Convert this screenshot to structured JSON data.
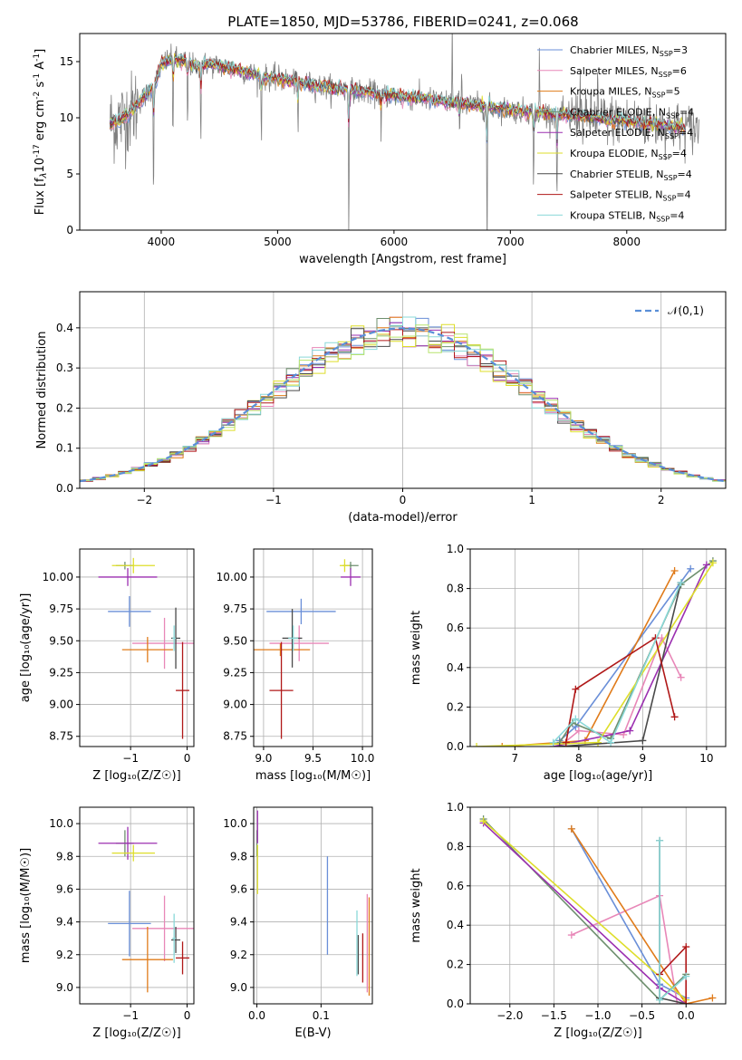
{
  "figure": {
    "title": "PLATE=1850, MJD=53786, FIBERID=0241, z=0.068"
  },
  "colors": {
    "Chabrier MILES": "#6a8fd8",
    "Salpeter MILES": "#e887b8",
    "Kroupa MILES": "#e07b1a",
    "Chabrier ELODIE": "#6e8f6e",
    "Salpeter ELODIE": "#9b2fb0",
    "Kroupa ELODIE": "#dede2a",
    "Chabrier STELIB": "#4a4a4a",
    "Salpeter STELIB": "#b01818",
    "Kroupa STELIB": "#8ad8d8",
    "data": "#808080",
    "gaussian": "#5a8fd8",
    "histogram_extra": "#b7e36e"
  },
  "chart_data": [
    {
      "id": "spectrum",
      "type": "line",
      "title": "PLATE=1850, MJD=53786, FIBERID=0241, z=0.068",
      "xlabel": "wavelength [Angstrom, rest frame]",
      "ylabel_parts": [
        "Flux [f",
        "λ",
        "10",
        "-17",
        " erg cm",
        "-2",
        " s",
        "-1",
        " A",
        "-1",
        "]"
      ],
      "xlim": [
        3300,
        8850
      ],
      "ylim": [
        0,
        17.5
      ],
      "xticks": [
        4000,
        5000,
        6000,
        7000,
        8000
      ],
      "yticks": [
        0,
        5,
        10,
        15
      ],
      "grid": false,
      "legend": "top-right",
      "legend_entries": [
        {
          "model": "Chabrier MILES",
          "label": "Chabrier MILES, N",
          "sub": "SSP",
          "suffix": "=3"
        },
        {
          "model": "Salpeter MILES",
          "label": "Salpeter MILES, N",
          "sub": "SSP",
          "suffix": "=6"
        },
        {
          "model": "Kroupa MILES",
          "label": "Kroupa MILES, N",
          "sub": "SSP",
          "suffix": "=5"
        },
        {
          "model": "Chabrier ELODIE",
          "label": "Chabrier ELODIE, N",
          "sub": "SSP",
          "suffix": "=4"
        },
        {
          "model": "Salpeter ELODIE",
          "label": "Salpeter ELODIE, N",
          "sub": "SSP",
          "suffix": "=4"
        },
        {
          "model": "Kroupa ELODIE",
          "label": "Kroupa ELODIE, N",
          "sub": "SSP",
          "suffix": "=4"
        },
        {
          "model": "Chabrier STELIB",
          "label": "Chabrier STELIB, N",
          "sub": "SSP",
          "suffix": "=4"
        },
        {
          "model": "Salpeter STELIB",
          "label": "Salpeter STELIB, N",
          "sub": "SSP",
          "suffix": "=4"
        },
        {
          "model": "Kroupa STELIB",
          "label": "Kroupa STELIB, N",
          "sub": "SSP",
          "suffix": "=4"
        }
      ],
      "continuum": [
        [
          3560,
          9.5
        ],
        [
          3650,
          9.8
        ],
        [
          3750,
          10.6
        ],
        [
          3850,
          11.8
        ],
        [
          3950,
          13.0
        ],
        [
          4000,
          14.8
        ],
        [
          4100,
          15.3
        ],
        [
          4200,
          15.0
        ],
        [
          4300,
          14.5
        ],
        [
          4400,
          14.8
        ],
        [
          4500,
          14.6
        ],
        [
          4700,
          14.2
        ],
        [
          4860,
          13.6
        ],
        [
          5000,
          13.5
        ],
        [
          5200,
          13.1
        ],
        [
          5500,
          12.6
        ],
        [
          5900,
          12.1
        ],
        [
          6300,
          11.6
        ],
        [
          6700,
          11.1
        ],
        [
          7100,
          10.6
        ],
        [
          7500,
          10.2
        ],
        [
          7900,
          9.8
        ],
        [
          8300,
          9.4
        ],
        [
          8600,
          9.0
        ]
      ],
      "data_range": [
        3560,
        8620
      ],
      "model_range": [
        3560,
        8500
      ],
      "dips": [
        [
          3934,
          11.8
        ],
        [
          4101,
          8
        ],
        [
          4227,
          6.5
        ],
        [
          4340,
          8
        ],
        [
          4861,
          6.5
        ],
        [
          5175,
          6
        ],
        [
          5612,
          14.5
        ],
        [
          5890,
          5
        ],
        [
          6563,
          6
        ],
        [
          6800,
          15
        ],
        [
          7200,
          8
        ],
        [
          7400,
          10
        ]
      ],
      "spikes": [
        [
          6500,
          8
        ],
        [
          6560,
          5
        ],
        [
          6583,
          4
        ],
        [
          7250,
          6
        ],
        [
          7600,
          6
        ],
        [
          7750,
          5
        ]
      ]
    },
    {
      "id": "residuals",
      "type": "line",
      "xlabel": "(data-model)/error",
      "ylabel": "Normed distribution",
      "xlim": [
        -2.5,
        2.5
      ],
      "ylim": [
        0,
        0.49
      ],
      "xticks": [
        -2,
        -1,
        0,
        1,
        2
      ],
      "yticks": [
        0.0,
        0.1,
        0.2,
        0.3,
        0.4
      ],
      "grid": true,
      "legend": "top-right",
      "legend_label": "𝒩(0,1)",
      "bin_width": 0.1
    },
    {
      "id": "age_vs_Z",
      "type": "scatter",
      "xlabel": "Z [log₁₀(Z/Z☉)]",
      "ylabel": "age  [log₁₀(age/yr)]",
      "xlim": [
        -1.9,
        0.12
      ],
      "ylim": [
        8.67,
        10.22
      ],
      "xticks": [
        -1,
        0
      ],
      "yticks": [
        8.75,
        9.0,
        9.25,
        9.5,
        9.75,
        10.0
      ],
      "grid": true,
      "points": [
        {
          "model": "Chabrier MILES",
          "x": -1.02,
          "xerr": 0.38,
          "y": 9.73,
          "yerr": 0.12
        },
        {
          "model": "Salpeter MILES",
          "x": -0.4,
          "xerr": 0.57,
          "y": 9.48,
          "yerr": 0.2
        },
        {
          "model": "Kroupa MILES",
          "x": -0.7,
          "xerr": 0.45,
          "y": 9.43,
          "yerr": 0.1
        },
        {
          "model": "Chabrier ELODIE",
          "x": -1.1,
          "xerr": 0.16,
          "y": 10.09,
          "yerr": 0.03
        },
        {
          "model": "Salpeter ELODIE",
          "x": -1.05,
          "xerr": 0.52,
          "y": 10.0,
          "yerr": 0.07
        },
        {
          "model": "Kroupa ELODIE",
          "x": -0.95,
          "xerr": 0.38,
          "y": 10.09,
          "yerr": 0.06
        },
        {
          "model": "Chabrier STELIB",
          "x": -0.2,
          "xerr": 0.08,
          "y": 9.52,
          "yerr": 0.24
        },
        {
          "model": "Salpeter STELIB",
          "x": -0.08,
          "xerr": 0.12,
          "y": 9.11,
          "yerr": 0.38
        },
        {
          "model": "Kroupa STELIB",
          "x": -0.23,
          "xerr": 0.03,
          "y": 9.52,
          "yerr": 0.1
        }
      ]
    },
    {
      "id": "age_vs_mass",
      "type": "scatter",
      "xlabel": "mass [log₁₀(M/M☉)]",
      "ylabel": "",
      "xlim": [
        8.9,
        10.1
      ],
      "ylim": [
        8.67,
        10.22
      ],
      "xticks": [
        9.0,
        9.5,
        10.0
      ],
      "yticks": [
        8.75,
        9.0,
        9.25,
        9.5,
        9.75,
        10.0
      ],
      "grid": true,
      "points": [
        {
          "model": "Chabrier MILES",
          "x": 9.38,
          "xerr": 0.35,
          "y": 9.73,
          "yerr": 0.1
        },
        {
          "model": "Salpeter MILES",
          "x": 9.36,
          "xerr": 0.3,
          "y": 9.48,
          "yerr": 0.14
        },
        {
          "model": "Kroupa MILES",
          "x": 9.17,
          "xerr": 0.3,
          "y": 9.43,
          "yerr": 0.05
        },
        {
          "model": "Chabrier ELODIE",
          "x": 9.88,
          "xerr": 0.08,
          "y": 10.09,
          "yerr": 0.03
        },
        {
          "model": "Salpeter ELODIE",
          "x": 9.88,
          "xerr": 0.1,
          "y": 10.0,
          "yerr": 0.07
        },
        {
          "model": "Kroupa ELODIE",
          "x": 9.82,
          "xerr": 0.05,
          "y": 10.09,
          "yerr": 0.05
        },
        {
          "model": "Chabrier STELIB",
          "x": 9.29,
          "xerr": 0.1,
          "y": 9.52,
          "yerr": 0.23
        },
        {
          "model": "Salpeter STELIB",
          "x": 9.18,
          "xerr": 0.12,
          "y": 9.11,
          "yerr": 0.38
        },
        {
          "model": "Kroupa STELIB",
          "x": 9.3,
          "xerr": 0.05,
          "y": 9.52,
          "yerr": 0.1
        }
      ]
    },
    {
      "id": "weight_vs_age",
      "type": "line",
      "xlabel": "age  [log₁₀(age/yr)]",
      "ylabel": "mass weight",
      "xlim": [
        6.3,
        10.3
      ],
      "ylim": [
        0,
        1.0
      ],
      "xticks": [
        7,
        8,
        9,
        10
      ],
      "yticks": [
        0.0,
        0.2,
        0.4,
        0.6,
        0.8,
        1.0
      ],
      "grid": true,
      "series": [
        {
          "model": "Chabrier MILES",
          "points": [
            [
              7.7,
              0.03
            ],
            [
              7.95,
              0.1
            ],
            [
              9.75,
              0.9
            ]
          ]
        },
        {
          "model": "Salpeter MILES",
          "points": [
            [
              7.7,
              0.0
            ],
            [
              8.0,
              0.08
            ],
            [
              8.7,
              0.06
            ],
            [
              9.3,
              0.55
            ],
            [
              9.6,
              0.35
            ]
          ]
        },
        {
          "model": "Kroupa MILES",
          "points": [
            [
              6.8,
              0.0
            ],
            [
              8.1,
              0.03
            ],
            [
              9.5,
              0.89
            ]
          ]
        },
        {
          "model": "Chabrier ELODIE",
          "points": [
            [
              7.7,
              0.02
            ],
            [
              7.9,
              0.12
            ],
            [
              8.5,
              0.04
            ],
            [
              9.6,
              0.82
            ],
            [
              10.1,
              0.94
            ]
          ]
        },
        {
          "model": "Salpeter ELODIE",
          "points": [
            [
              7.6,
              0.0
            ],
            [
              8.8,
              0.08
            ],
            [
              10.0,
              0.92
            ]
          ]
        },
        {
          "model": "Kroupa ELODIE",
          "points": [
            [
              6.4,
              0.0
            ],
            [
              8.3,
              0.02
            ],
            [
              10.1,
              0.93
            ]
          ]
        },
        {
          "model": "Chabrier STELIB",
          "points": [
            [
              7.7,
              0.0
            ],
            [
              9.0,
              0.03
            ],
            [
              9.6,
              0.83
            ]
          ]
        },
        {
          "model": "Salpeter STELIB",
          "points": [
            [
              7.8,
              0.02
            ],
            [
              7.95,
              0.29
            ],
            [
              9.2,
              0.55
            ],
            [
              9.5,
              0.15
            ]
          ]
        },
        {
          "model": "Kroupa STELIB",
          "points": [
            [
              7.6,
              0.02
            ],
            [
              7.95,
              0.14
            ],
            [
              8.5,
              0.02
            ],
            [
              9.6,
              0.83
            ]
          ]
        }
      ]
    },
    {
      "id": "mass_vs_Z",
      "type": "scatter",
      "xlabel": "Z [log₁₀(Z/Z☉)]",
      "ylabel": "mass [log₁₀(M/M☉)]",
      "xlim": [
        -1.9,
        0.12
      ],
      "ylim": [
        8.9,
        10.1
      ],
      "xticks": [
        -1,
        0
      ],
      "yticks": [
        9.0,
        9.2,
        9.4,
        9.6,
        9.8,
        10.0
      ],
      "grid": true,
      "points": [
        {
          "model": "Chabrier MILES",
          "x": -1.02,
          "xerr": 0.38,
          "y": 9.39,
          "yerr": 0.2
        },
        {
          "model": "Salpeter MILES",
          "x": -0.4,
          "xerr": 0.57,
          "y": 9.36,
          "yerr": 0.2
        },
        {
          "model": "Kroupa MILES",
          "x": -0.7,
          "xerr": 0.45,
          "y": 9.17,
          "yerr": 0.2
        },
        {
          "model": "Chabrier ELODIE",
          "x": -1.1,
          "xerr": 0.16,
          "y": 9.88,
          "yerr": 0.08
        },
        {
          "model": "Salpeter ELODIE",
          "x": -1.05,
          "xerr": 0.52,
          "y": 9.88,
          "yerr": 0.1
        },
        {
          "model": "Kroupa ELODIE",
          "x": -0.95,
          "xerr": 0.38,
          "y": 9.82,
          "yerr": 0.05
        },
        {
          "model": "Chabrier STELIB",
          "x": -0.2,
          "xerr": 0.08,
          "y": 9.29,
          "yerr": 0.08
        },
        {
          "model": "Salpeter STELIB",
          "x": -0.08,
          "xerr": 0.12,
          "y": 9.18,
          "yerr": 0.1
        },
        {
          "model": "Kroupa STELIB",
          "x": -0.23,
          "xerr": 0.03,
          "y": 9.3,
          "yerr": 0.15
        }
      ]
    },
    {
      "id": "mass_vs_ebv",
      "type": "scatter",
      "xlabel": "E(B-V)",
      "ylabel": "",
      "xlim": [
        -0.005,
        0.18
      ],
      "ylim": [
        8.9,
        10.1
      ],
      "xticks": [
        0.0,
        0.1
      ],
      "yticks": [
        9.0,
        9.2,
        9.4,
        9.6,
        9.8,
        10.0
      ],
      "grid": true,
      "points": [
        {
          "model": "Chabrier MILES",
          "x": 0.11,
          "xerr": 0.0,
          "y": 9.5,
          "yerr": 0.3
        },
        {
          "model": "Salpeter MILES",
          "x": 0.172,
          "xerr": 0.0,
          "y": 9.27,
          "yerr": 0.3
        },
        {
          "model": "Kroupa MILES",
          "x": 0.175,
          "xerr": 0.0,
          "y": 9.25,
          "yerr": 0.3
        },
        {
          "model": "Chabrier ELODIE",
          "x": 0.0,
          "xerr": 0.0,
          "y": 9.88,
          "yerr": 0.08
        },
        {
          "model": "Salpeter ELODIE",
          "x": 0.001,
          "xerr": 0.0,
          "y": 9.98,
          "yerr": 0.1
        },
        {
          "model": "Kroupa ELODIE",
          "x": 0.001,
          "xerr": 0.0,
          "y": 9.72,
          "yerr": 0.15
        },
        {
          "model": "Chabrier STELIB",
          "x": 0.158,
          "xerr": 0.0,
          "y": 9.2,
          "yerr": 0.12
        },
        {
          "model": "Salpeter STELIB",
          "x": 0.165,
          "xerr": 0.0,
          "y": 9.18,
          "yerr": 0.15
        },
        {
          "model": "Kroupa STELIB",
          "x": 0.156,
          "xerr": 0.0,
          "y": 9.27,
          "yerr": 0.2
        }
      ]
    },
    {
      "id": "weight_vs_Z",
      "type": "line",
      "xlabel": "Z [log₁₀(Z/Z☉)]",
      "ylabel": "mass weight",
      "xlim": [
        -2.45,
        0.45
      ],
      "ylim": [
        0,
        1.0
      ],
      "xticks": [
        -2.0,
        -1.5,
        -1.0,
        -0.5,
        0.0
      ],
      "yticks": [
        0.0,
        0.2,
        0.4,
        0.6,
        0.8,
        1.0
      ],
      "grid": true,
      "series": [
        {
          "model": "Chabrier MILES",
          "points": [
            [
              -1.3,
              0.89
            ],
            [
              -0.3,
              0.1
            ],
            [
              0.0,
              0.03
            ]
          ]
        },
        {
          "model": "Salpeter MILES",
          "points": [
            [
              -1.3,
              0.35
            ],
            [
              -0.3,
              0.55
            ],
            [
              -0.1,
              0.0
            ]
          ]
        },
        {
          "model": "Kroupa MILES",
          "points": [
            [
              -1.3,
              0.89
            ],
            [
              0.0,
              0.0
            ],
            [
              0.3,
              0.03
            ]
          ]
        },
        {
          "model": "Chabrier ELODIE",
          "points": [
            [
              -2.3,
              0.94
            ],
            [
              -0.3,
              0.02
            ],
            [
              0.0,
              0.15
            ]
          ]
        },
        {
          "model": "Salpeter ELODIE",
          "points": [
            [
              -2.3,
              0.92
            ],
            [
              -0.3,
              0.08
            ],
            [
              0.0,
              0.0
            ]
          ]
        },
        {
          "model": "Kroupa ELODIE",
          "points": [
            [
              -2.3,
              0.93
            ],
            [
              0.0,
              0.02
            ]
          ]
        },
        {
          "model": "Chabrier STELIB",
          "points": [
            [
              -0.3,
              0.83
            ],
            [
              -0.3,
              0.03
            ],
            [
              0.0,
              0.0
            ]
          ]
        },
        {
          "model": "Salpeter STELIB",
          "points": [
            [
              -0.3,
              0.15
            ],
            [
              0.0,
              0.29
            ],
            [
              0.0,
              0.0
            ]
          ]
        },
        {
          "model": "Kroupa STELIB",
          "points": [
            [
              -0.3,
              0.83
            ],
            [
              -0.3,
              0.02
            ],
            [
              0.0,
              0.14
            ]
          ]
        }
      ]
    }
  ]
}
